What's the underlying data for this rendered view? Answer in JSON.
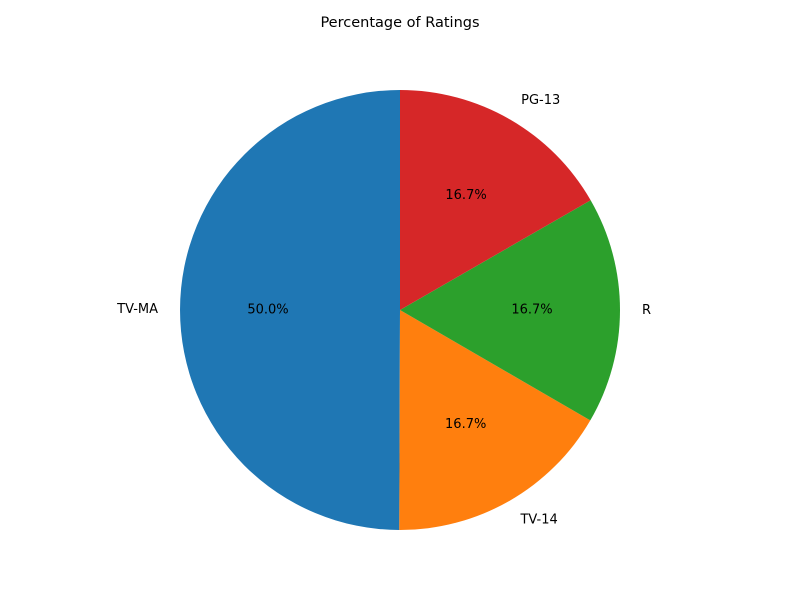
{
  "chart_data": {
    "type": "pie",
    "title": "Percentage of Ratings",
    "start_angle_deg": 90,
    "direction": "counterclockwise",
    "slices": [
      {
        "label": "TV-MA",
        "value": 50.0,
        "pct_label": "50.0%",
        "color": "#1f77b4"
      },
      {
        "label": "TV-14",
        "value": 16.7,
        "pct_label": "16.7%",
        "color": "#ff7f0e"
      },
      {
        "label": "R",
        "value": 16.7,
        "pct_label": "16.7%",
        "color": "#2ca02c"
      },
      {
        "label": "PG-13",
        "value": 16.7,
        "pct_label": "16.7%",
        "color": "#d62728"
      }
    ]
  }
}
